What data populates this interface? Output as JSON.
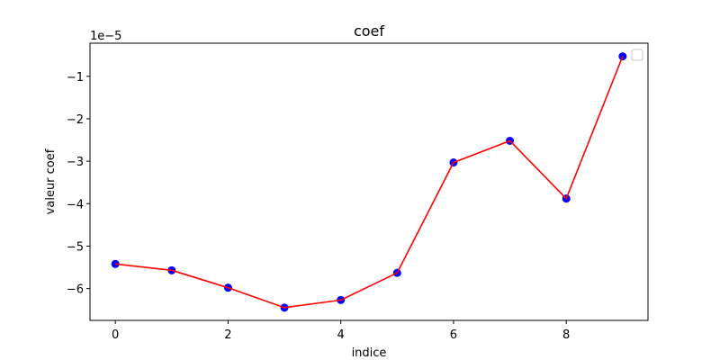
{
  "chart_data": {
    "type": "line",
    "title": "coef",
    "xlabel": "indice",
    "ylabel": "valeur coef",
    "y_scale_label": "1e−5",
    "x": [
      0,
      1,
      2,
      3,
      4,
      5,
      6,
      7,
      8,
      9
    ],
    "series": [
      {
        "values": [
          -5.42,
          -5.57,
          -5.98,
          -6.45,
          -6.27,
          -5.63,
          -3.03,
          -2.52,
          -3.88,
          -0.53
        ],
        "line_color": "#ff0000",
        "marker_color": "#0000ff"
      }
    ],
    "xlim": [
      -0.45,
      9.45
    ],
    "ylim": [
      -6.75,
      -0.22
    ],
    "x_ticks": [
      0,
      2,
      4,
      6,
      8
    ],
    "y_ticks": [
      -1,
      -2,
      -3,
      -4,
      -5,
      -6
    ],
    "x_tick_labels": [
      "0",
      "2",
      "4",
      "6",
      "8"
    ],
    "y_tick_labels": [
      "−1",
      "−2",
      "−3",
      "−4",
      "−5",
      "−6"
    ],
    "grid": false,
    "legend": "top-right",
    "legend_entries": []
  }
}
